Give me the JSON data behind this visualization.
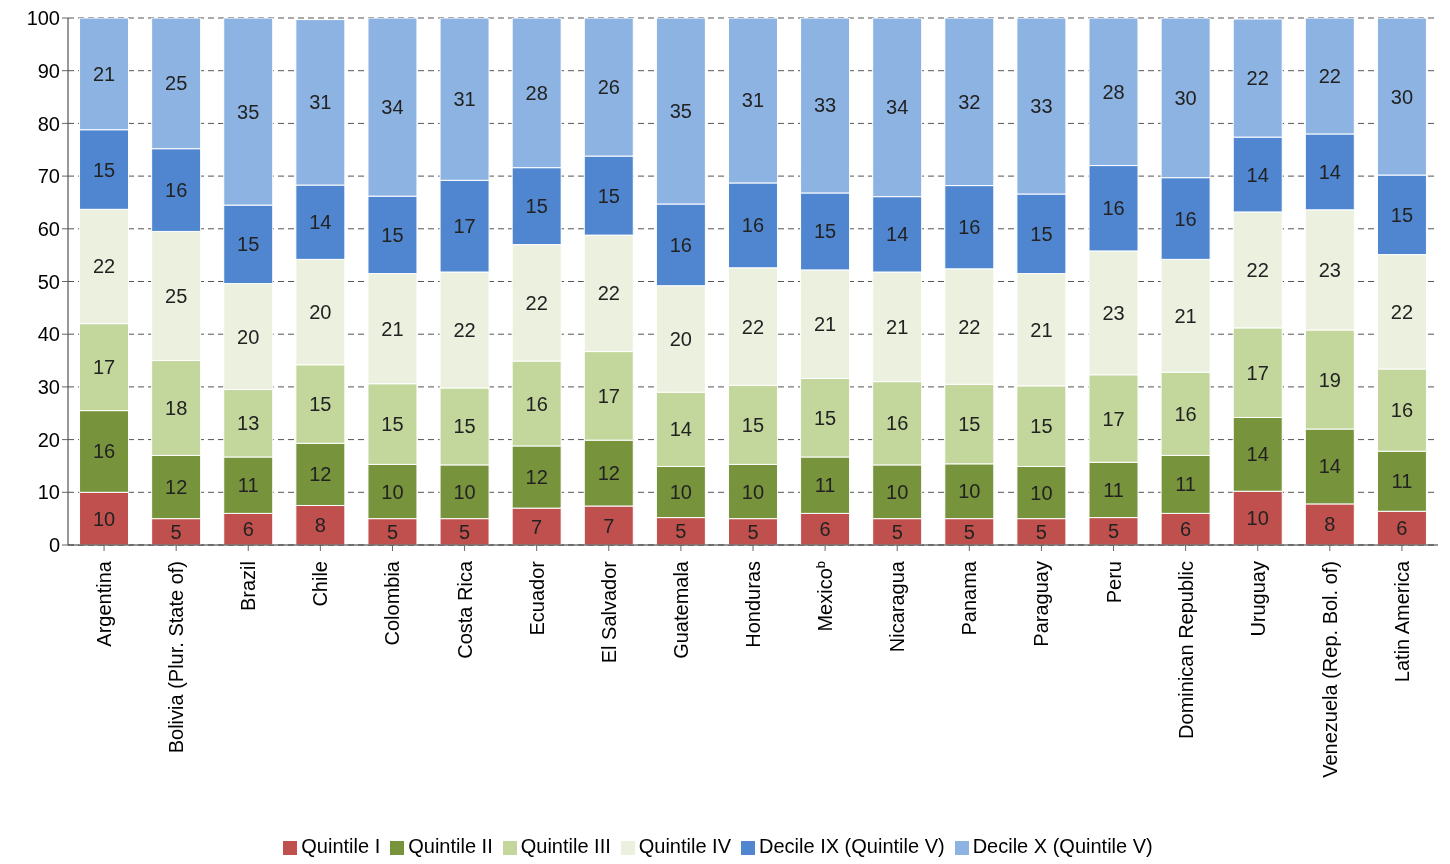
{
  "chart_data": {
    "type": "bar",
    "stacked": true,
    "categories": [
      "Argentina",
      "Bolivia (Plur. State of)",
      "Brazil",
      "Chile",
      "Colombia",
      "Costa Rica",
      "Ecuador",
      "El Salvador",
      "Guatemala",
      "Honduras",
      "Mexico$^{b}$",
      "Nicaragua",
      "Panama",
      "Paraguay",
      "Peru",
      "Dominican Republic",
      "Uruguay",
      "Venezuela (Rep. Bol. of)",
      "Latin America"
    ],
    "ylim": [
      0,
      100
    ],
    "yticks": [
      0,
      10,
      20,
      30,
      40,
      50,
      60,
      70,
      80,
      90,
      100
    ],
    "grid": "y",
    "legend": "bottom",
    "series": [
      {
        "name": "Quintile I",
        "color": "#c0504d",
        "values": [
          10,
          5,
          6,
          7.5,
          5,
          5,
          7,
          7.4,
          5.2,
          5,
          6,
          5,
          5,
          5,
          5.2,
          6,
          10.2,
          7.8,
          6.4
        ],
        "value_labels": [
          "10",
          "5",
          "6",
          "8",
          "5",
          "5",
          "7",
          "7",
          "5",
          "5",
          "6",
          "5",
          "5",
          "5",
          "5",
          "6",
          "10",
          "8",
          "6"
        ]
      },
      {
        "name": "Quintile II",
        "color": "#77933c",
        "values": [
          15.5,
          12,
          10.7,
          11.8,
          10.3,
          10.2,
          11.8,
          12.5,
          9.7,
          10.3,
          10.7,
          10.2,
          10.4,
          9.9,
          10.5,
          11,
          14,
          14.2,
          11.4
        ],
        "value_labels": [
          "16",
          "12",
          "11",
          "12",
          "10",
          "10",
          "12",
          "12",
          "10",
          "10",
          "11",
          "10",
          "10",
          "10",
          "11",
          "11",
          "14",
          "14",
          "11"
        ]
      },
      {
        "name": "Quintile III",
        "color": "#c3d69b",
        "values": [
          16.5,
          18,
          12.8,
          14.9,
          15.3,
          14.6,
          16.1,
          16.8,
          14.1,
          15,
          14.9,
          15.8,
          15.1,
          15.3,
          16.6,
          15.8,
          17,
          18.8,
          15.6
        ],
        "value_labels": [
          "17",
          "18",
          "13",
          "15",
          "15",
          "15",
          "16",
          "17",
          "14",
          "15",
          "15",
          "16",
          "15",
          "15",
          "17",
          "16",
          "17",
          "19",
          "16"
        ]
      },
      {
        "name": "Quintile IV",
        "color": "#ebf1de",
        "values": [
          21.7,
          24.5,
          20.1,
          20,
          20.9,
          22,
          22.1,
          22.1,
          20.2,
          22.3,
          20.6,
          20.8,
          21.9,
          21.3,
          23.5,
          21.4,
          22,
          22.8,
          21.7
        ],
        "value_labels": [
          "22",
          "25",
          "20",
          "20",
          "21",
          "22",
          "22",
          "22",
          "20",
          "22",
          "21",
          "21",
          "22",
          "21",
          "23",
          "21",
          "22",
          "23",
          "22"
        ]
      },
      {
        "name": "Decile IX (Quintile V)",
        "color": "#4f86cf",
        "values": [
          15.1,
          15.7,
          14.9,
          14.1,
          14.7,
          17.4,
          14.6,
          15,
          15.5,
          16.1,
          14.6,
          14.3,
          15.8,
          15.1,
          16.2,
          15.5,
          14.2,
          14.4,
          15.1
        ],
        "value_labels": [
          "15",
          "16",
          "15",
          "14",
          "15",
          "17",
          "15",
          "15",
          "16",
          "16",
          "15",
          "14",
          "16",
          "15",
          "16",
          "16",
          "14",
          "14",
          "15"
        ]
      },
      {
        "name": "Decile X (Quintile V)",
        "color": "#8db3e2",
        "values": [
          21.2,
          24.8,
          35.5,
          31.4,
          33.8,
          30.8,
          28.4,
          26.2,
          35.3,
          31.3,
          33.2,
          33.9,
          31.8,
          33.4,
          28,
          30.3,
          22.4,
          22,
          29.8
        ],
        "value_labels": [
          "21",
          "25",
          "35",
          "31",
          "34",
          "31",
          "28",
          "26",
          "35",
          "31",
          "33",
          "34",
          "32",
          "33",
          "28",
          "30",
          "22",
          "22",
          "30"
        ]
      }
    ]
  }
}
